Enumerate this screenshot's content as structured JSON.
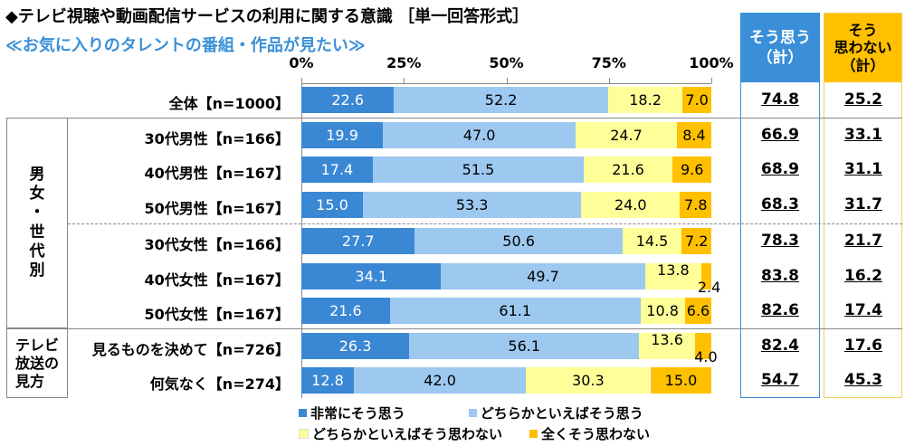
{
  "title": "◆テレビ視聴や動画配信サービスの利用に関する意識 ［単一回答形式］",
  "subtitle": "≪お気に入りのタレントの番組・作品が見たい≫",
  "sum_headers": {
    "agree": "そう思う\n（計）",
    "disagree": "そう\n思わない\n（計）"
  },
  "groups": {
    "gender_age": "男\n女\n・\n世\n代\n別",
    "viewing": "テレビ\n放送の\n見方"
  },
  "colors": {
    "strongly_agree": "#3a87d4",
    "somewhat_agree": "#9dc8f0",
    "somewhat_disagree": "#ffff99",
    "strongly_disagree": "#ffc000",
    "agree_box": "#3a8fd8",
    "disagree_box": "#f0d060"
  },
  "chart_data": {
    "type": "bar",
    "stacked": true,
    "orientation": "horizontal",
    "xlim": [
      0,
      100
    ],
    "ticks": [
      "0%",
      "25%",
      "50%",
      "75%",
      "100%"
    ],
    "categories": [
      "全体【n=1000】",
      "30代男性【n=166】",
      "40代男性【n=167】",
      "50代男性【n=167】",
      "30代女性【n=166】",
      "40代女性【n=167】",
      "50代女性【n=167】",
      "見るものを決めて【n=726】",
      "何気なく【n=274】"
    ],
    "series": [
      {
        "name": "非常にそう思う",
        "values": [
          22.6,
          19.9,
          17.4,
          15.0,
          27.7,
          34.1,
          21.6,
          26.3,
          12.8
        ]
      },
      {
        "name": "どちらかといえばそう思う",
        "values": [
          52.2,
          47.0,
          51.5,
          53.3,
          50.6,
          49.7,
          61.1,
          56.1,
          42.0
        ]
      },
      {
        "name": "どちらかといえばそう思わない",
        "values": [
          18.2,
          24.7,
          21.6,
          24.0,
          14.5,
          13.8,
          10.8,
          13.6,
          30.3
        ]
      },
      {
        "name": "全くそう思わない",
        "values": [
          7.0,
          8.4,
          9.6,
          7.8,
          7.2,
          2.4,
          6.6,
          4.0,
          15.0
        ]
      }
    ],
    "agree_total": [
      "74.8",
      "66.9",
      "68.9",
      "68.3",
      "78.3",
      "83.8",
      "82.6",
      "82.4",
      "54.7"
    ],
    "disagree_total": [
      "25.2",
      "33.1",
      "31.1",
      "31.7",
      "21.7",
      "16.2",
      "17.4",
      "17.6",
      "45.3"
    ],
    "legend_position": "bottom"
  }
}
